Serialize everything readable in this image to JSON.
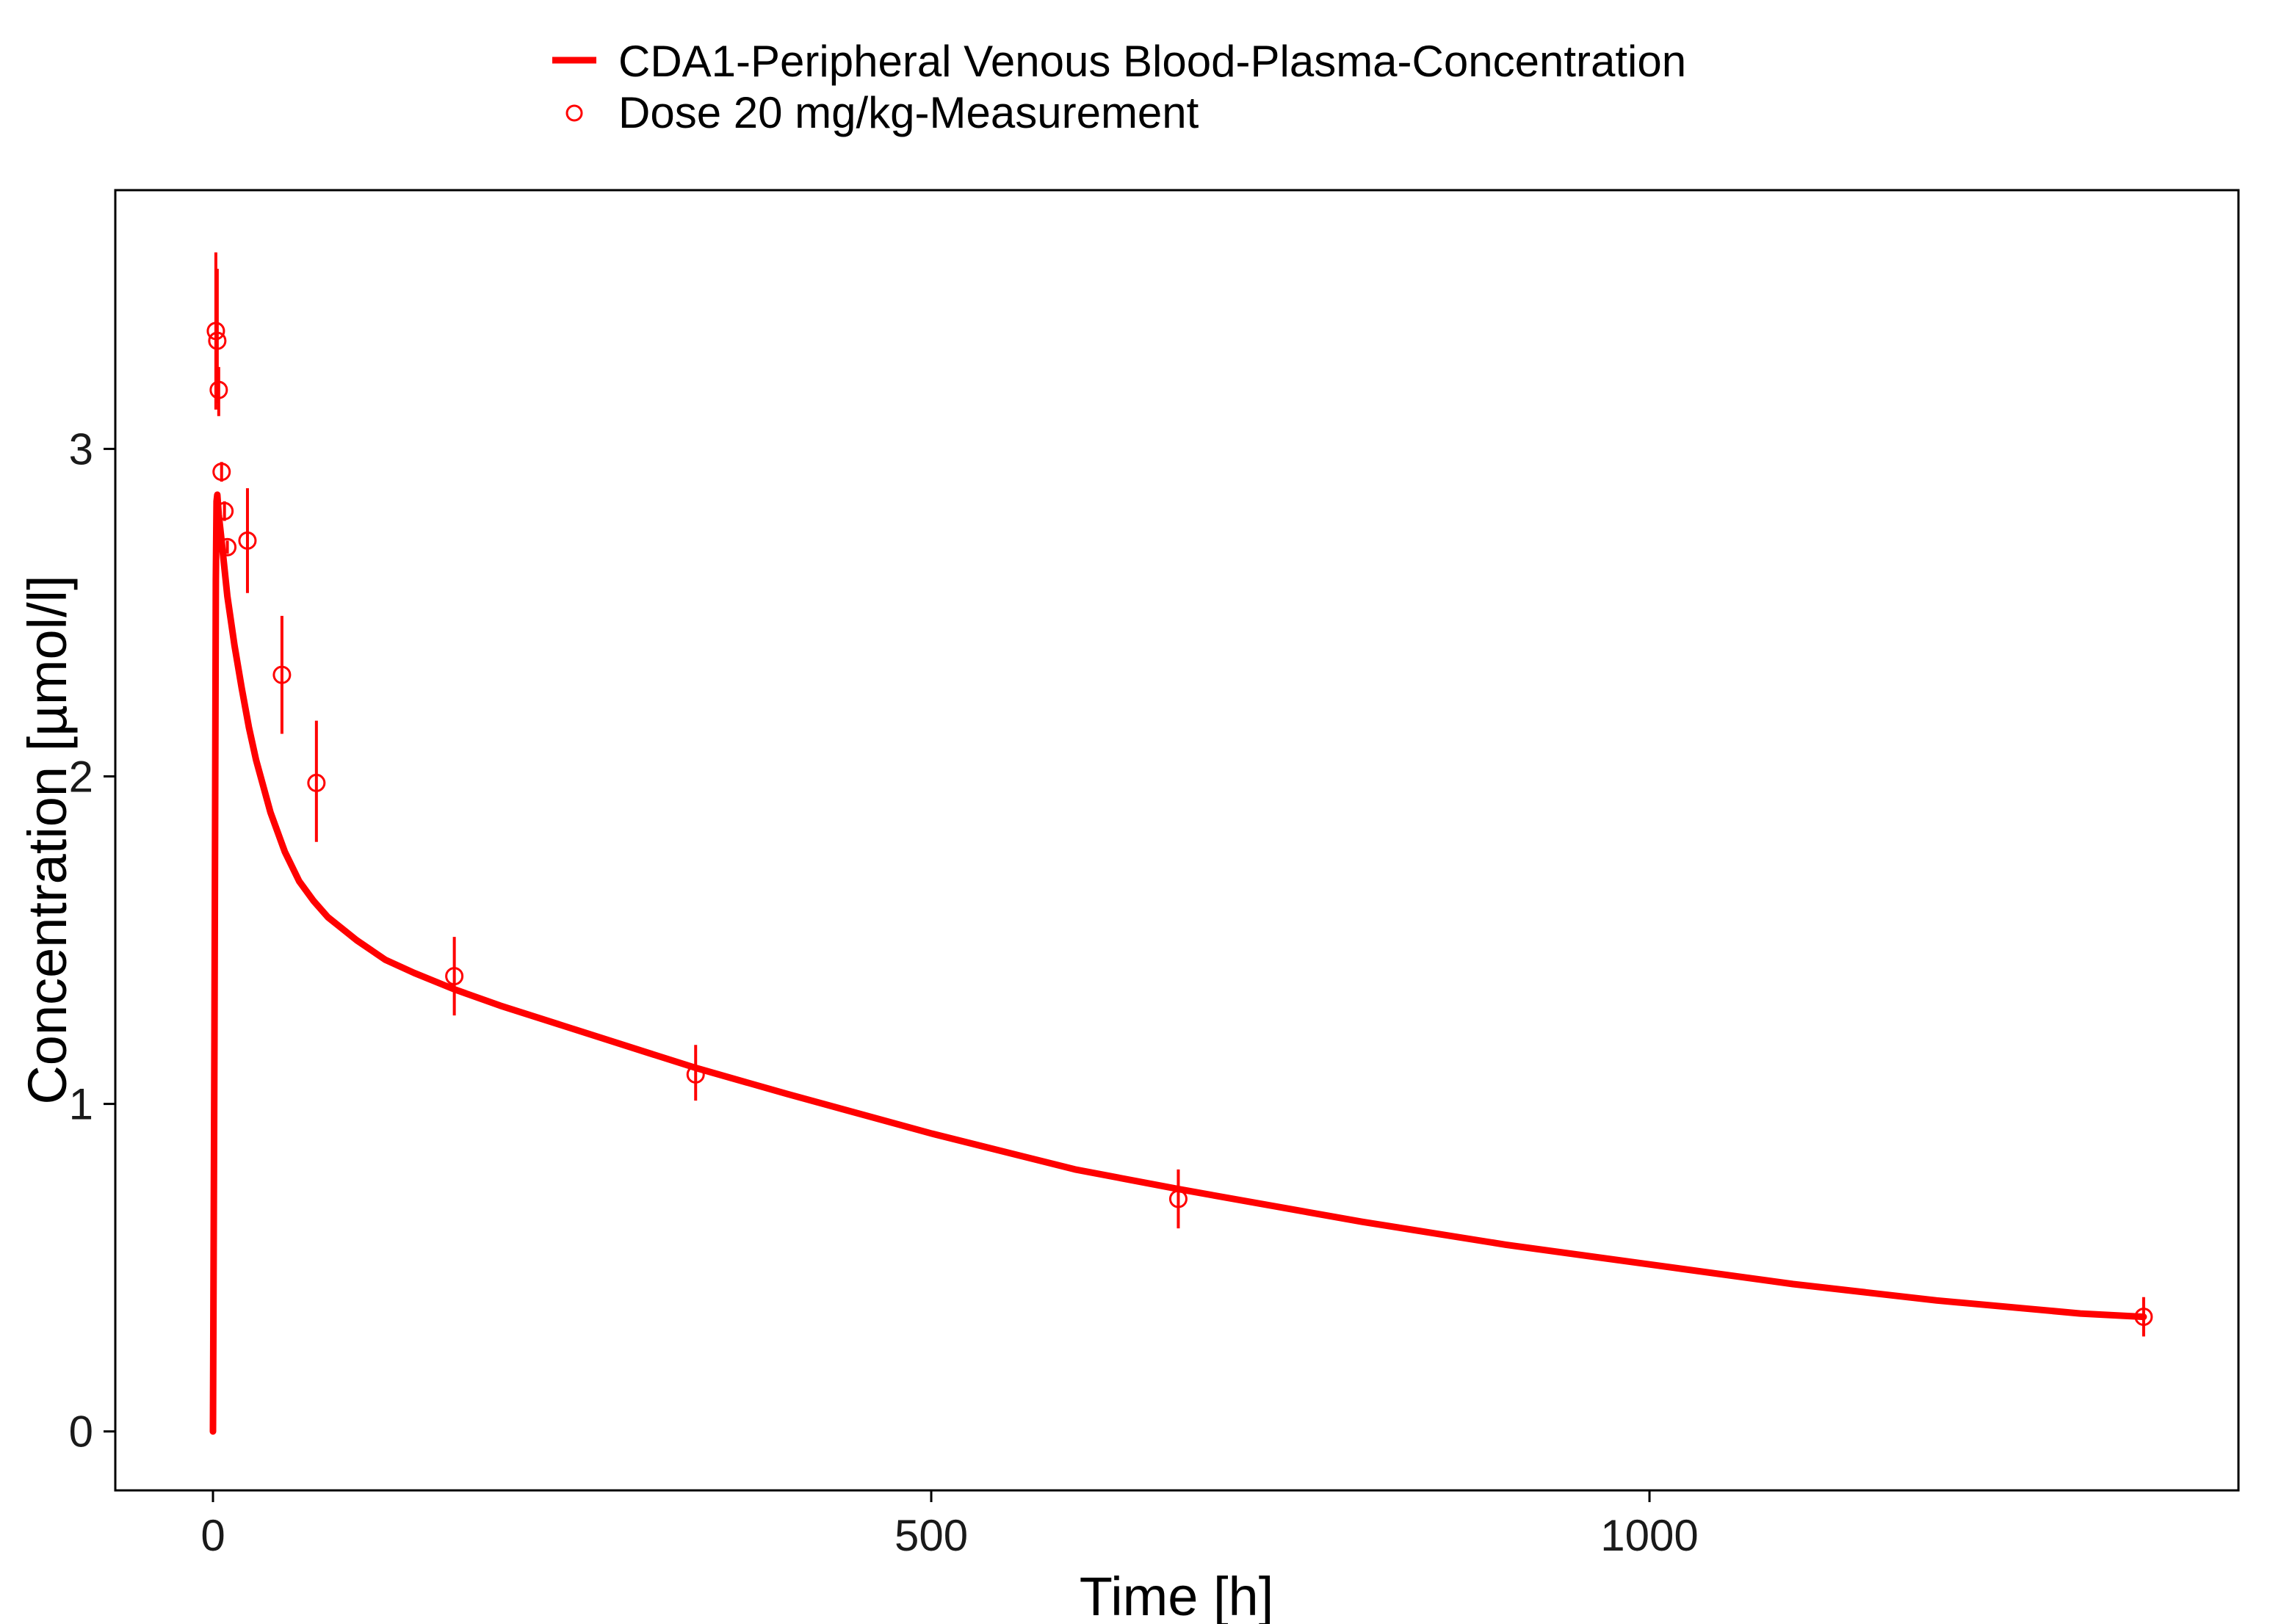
{
  "chart_data": {
    "type": "line",
    "title": "",
    "xlabel": "Time [h]",
    "ylabel": "Concentration [µmol/l]",
    "xlim": [
      -68,
      1410
    ],
    "ylim": [
      -0.18,
      3.79
    ],
    "x_ticks": [
      0,
      500,
      1000
    ],
    "x_tick_labels": [
      "0",
      "500",
      "1000"
    ],
    "y_ticks": [
      0,
      1,
      2,
      3
    ],
    "y_tick_labels": [
      "0",
      "1",
      "2",
      "3"
    ],
    "grid": false,
    "legend_position": "top",
    "colors": {
      "series": "#ff0000",
      "axis": "#000000"
    },
    "series": [
      {
        "name": "CDA1-Peripheral Venous Blood-Plasma-Concentration",
        "kind": "line",
        "points": [
          [
            0,
            0.0
          ],
          [
            1,
            1.2
          ],
          [
            2,
            2.6
          ],
          [
            2.5,
            2.84
          ],
          [
            3,
            2.86
          ],
          [
            4,
            2.8
          ],
          [
            6,
            2.72
          ],
          [
            10,
            2.55
          ],
          [
            15,
            2.4
          ],
          [
            20,
            2.27
          ],
          [
            25,
            2.15
          ],
          [
            30,
            2.05
          ],
          [
            40,
            1.89
          ],
          [
            50,
            1.77
          ],
          [
            60,
            1.68
          ],
          [
            70,
            1.62
          ],
          [
            80,
            1.57
          ],
          [
            100,
            1.5
          ],
          [
            120,
            1.44
          ],
          [
            140,
            1.4
          ],
          [
            168,
            1.35
          ],
          [
            200,
            1.3
          ],
          [
            250,
            1.23
          ],
          [
            300,
            1.16
          ],
          [
            336,
            1.11
          ],
          [
            400,
            1.03
          ],
          [
            500,
            0.91
          ],
          [
            600,
            0.8
          ],
          [
            672,
            0.74
          ],
          [
            800,
            0.64
          ],
          [
            900,
            0.57
          ],
          [
            1000,
            0.51
          ],
          [
            1100,
            0.45
          ],
          [
            1200,
            0.4
          ],
          [
            1300,
            0.36
          ],
          [
            1344,
            0.35
          ]
        ]
      },
      {
        "name": "Dose 20 mg/kg-Measurement",
        "kind": "scatter",
        "points": [
          {
            "x": 2,
            "y": 3.36,
            "yerr_low": 3.12,
            "yerr_high": 3.6
          },
          {
            "x": 3,
            "y": 3.33,
            "yerr_low": 3.14,
            "yerr_high": 3.55
          },
          {
            "x": 4,
            "y": 3.18,
            "yerr_low": 3.1,
            "yerr_high": 3.25
          },
          {
            "x": 6,
            "y": 2.93,
            "yerr_low": 2.9,
            "yerr_high": 2.96
          },
          {
            "x": 8,
            "y": 2.81,
            "yerr_low": 2.78,
            "yerr_high": 2.84
          },
          {
            "x": 10,
            "y": 2.7,
            "yerr_low": 2.68,
            "yerr_high": 2.72
          },
          {
            "x": 24,
            "y": 2.72,
            "yerr_low": 2.56,
            "yerr_high": 2.88
          },
          {
            "x": 48,
            "y": 2.31,
            "yerr_low": 2.13,
            "yerr_high": 2.49
          },
          {
            "x": 72,
            "y": 1.98,
            "yerr_low": 1.8,
            "yerr_high": 2.17
          },
          {
            "x": 168,
            "y": 1.39,
            "yerr_low": 1.27,
            "yerr_high": 1.51
          },
          {
            "x": 336,
            "y": 1.09,
            "yerr_low": 1.01,
            "yerr_high": 1.18
          },
          {
            "x": 672,
            "y": 0.71,
            "yerr_low": 0.62,
            "yerr_high": 0.8
          },
          {
            "x": 1344,
            "y": 0.35,
            "yerr_low": 0.29,
            "yerr_high": 0.41
          }
        ]
      }
    ]
  }
}
